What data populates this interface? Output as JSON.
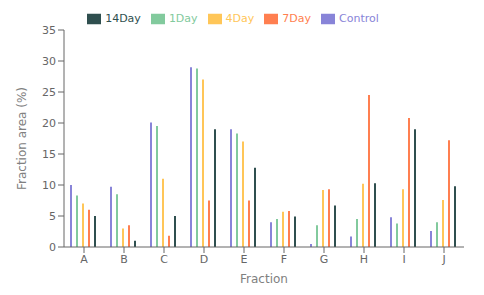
{
  "chart_data": {
    "type": "bar",
    "categories": [
      "A",
      "B",
      "C",
      "D",
      "E",
      "F",
      "G",
      "H",
      "I",
      "J"
    ],
    "series": [
      {
        "name": "Control",
        "values": [
          10.0,
          9.7,
          20.1,
          29.0,
          19.0,
          4.0,
          0.5,
          1.7,
          4.8,
          2.6
        ]
      },
      {
        "name": "1Day",
        "values": [
          8.3,
          8.5,
          19.5,
          28.8,
          18.3,
          4.5,
          3.5,
          4.5,
          3.8,
          4.0
        ]
      },
      {
        "name": "4Day",
        "values": [
          7.0,
          3.0,
          11.0,
          27.0,
          17.0,
          5.7,
          9.2,
          10.2,
          9.3,
          7.6
        ]
      },
      {
        "name": "7Day",
        "values": [
          6.0,
          3.5,
          1.8,
          7.5,
          7.5,
          5.8,
          9.3,
          24.5,
          20.8,
          17.2
        ]
      },
      {
        "name": "14Day",
        "values": [
          5.0,
          1.0,
          5.0,
          19.0,
          12.8,
          4.9,
          6.7,
          10.3,
          19.0,
          9.8
        ]
      }
    ],
    "xlabel": "Fraction",
    "ylabel": "Fraction area (%)",
    "ylim": [
      0,
      35
    ],
    "yticks": [
      0,
      5,
      10,
      15,
      20,
      25,
      30,
      35
    ],
    "grid": false,
    "legend": "top"
  }
}
